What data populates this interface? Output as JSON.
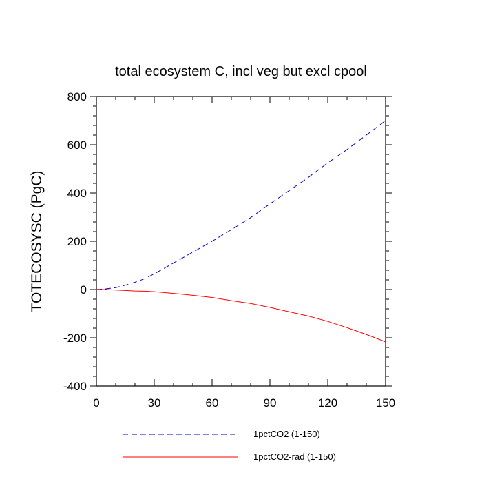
{
  "chart_data": {
    "type": "line",
    "title": "total ecosystem C, incl veg but excl cpool",
    "xlabel": "",
    "ylabel": "TOTECOSYSC  (PgC)",
    "xlim": [
      0,
      150
    ],
    "ylim": [
      -400,
      800
    ],
    "xticks": [
      0,
      30,
      60,
      90,
      120,
      150
    ],
    "xtick_labels": [
      "0",
      "30",
      "60",
      "90",
      "120",
      "150"
    ],
    "yticks": [
      -400,
      -200,
      0,
      200,
      400,
      600,
      800
    ],
    "ytick_labels": [
      "-400",
      "-200",
      "0",
      "200",
      "400",
      "600",
      "800"
    ],
    "grid": false,
    "legend_position": "bottom",
    "series": [
      {
        "name": "1pctCO2 (1-150)",
        "color": "#0000cc",
        "style": "dashed",
        "x": [
          0,
          5,
          10,
          15,
          20,
          25,
          30,
          40,
          50,
          60,
          70,
          80,
          90,
          100,
          110,
          120,
          130,
          140,
          150
        ],
        "y": [
          0,
          3,
          8,
          18,
          30,
          45,
          65,
          110,
          155,
          200,
          248,
          298,
          355,
          410,
          465,
          525,
          580,
          640,
          700
        ]
      },
      {
        "name": "1pctCO2-rad (1-150)",
        "color": "#ff0000",
        "style": "solid",
        "x": [
          0,
          5,
          10,
          15,
          20,
          25,
          30,
          40,
          50,
          60,
          70,
          80,
          90,
          100,
          110,
          120,
          130,
          140,
          150
        ],
        "y": [
          0,
          0,
          -2,
          -4,
          -6,
          -7,
          -9,
          -16,
          -24,
          -33,
          -46,
          -58,
          -74,
          -92,
          -110,
          -132,
          -158,
          -186,
          -217
        ]
      }
    ]
  }
}
